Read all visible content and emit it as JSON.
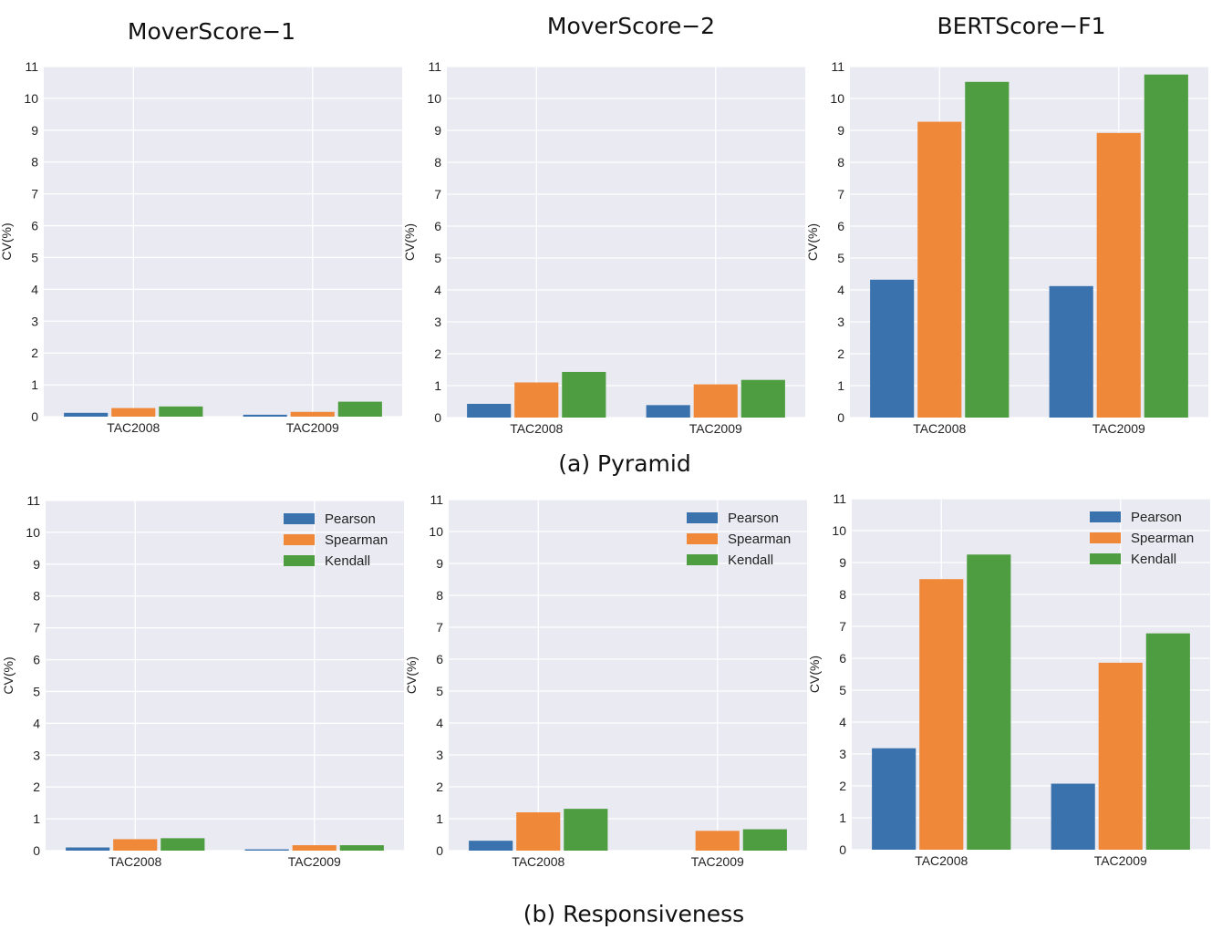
{
  "titles": {
    "col1": "MoverScore−1",
    "col2": "MoverScore−2",
    "col3": "BERTScore−F1"
  },
  "captions": {
    "top": "(a) Pyramid",
    "bottom": "(b) Responsiveness"
  },
  "colors": {
    "Pearson": "#3a72ad",
    "Spearman": "#ef8839",
    "Kendall": "#4e9d40",
    "plot_bg": "#eaeaf2",
    "grid": "#ffffff"
  },
  "chart_data": [
    {
      "type": "bar",
      "id": "pyr-ms1",
      "title": "MoverScore−1",
      "caption": "(a) Pyramid",
      "categories": [
        "TAC2008",
        "TAC2009"
      ],
      "ylabel": "CV(%)",
      "ylim": [
        0,
        11
      ],
      "yticks": [
        "0",
        "1",
        "2",
        "3",
        "4",
        "5",
        "6",
        "7",
        "8",
        "9",
        "10",
        "11"
      ],
      "legend": false,
      "series": [
        {
          "name": "Pearson",
          "values": [
            0.12,
            0.06
          ]
        },
        {
          "name": "Spearman",
          "values": [
            0.27,
            0.15
          ]
        },
        {
          "name": "Kendall",
          "values": [
            0.32,
            0.47
          ]
        }
      ]
    },
    {
      "type": "bar",
      "id": "pyr-ms2",
      "title": "MoverScore−2",
      "caption": "(a) Pyramid",
      "categories": [
        "TAC2008",
        "TAC2009"
      ],
      "ylabel": "CV(%)",
      "ylim": [
        0,
        11
      ],
      "yticks": [
        "0",
        "1",
        "2",
        "3",
        "4",
        "5",
        "6",
        "7",
        "8",
        "9",
        "10",
        "11"
      ],
      "legend": false,
      "series": [
        {
          "name": "Pearson",
          "values": [
            0.43,
            0.39
          ]
        },
        {
          "name": "Spearman",
          "values": [
            1.1,
            1.04
          ]
        },
        {
          "name": "Kendall",
          "values": [
            1.43,
            1.18
          ]
        }
      ]
    },
    {
      "type": "bar",
      "id": "pyr-bert",
      "title": "BERTScore−F1",
      "caption": "(a) Pyramid",
      "categories": [
        "TAC2008",
        "TAC2009"
      ],
      "ylabel": "CV(%)",
      "ylim": [
        0,
        11
      ],
      "yticks": [
        "0",
        "1",
        "2",
        "3",
        "4",
        "5",
        "6",
        "7",
        "8",
        "9",
        "10",
        "11"
      ],
      "legend": false,
      "series": [
        {
          "name": "Pearson",
          "values": [
            4.32,
            4.12
          ]
        },
        {
          "name": "Spearman",
          "values": [
            9.27,
            8.92
          ]
        },
        {
          "name": "Kendall",
          "values": [
            10.52,
            10.75
          ]
        }
      ]
    },
    {
      "type": "bar",
      "id": "resp-ms1",
      "title": "MoverScore−1",
      "caption": "(b) Responsiveness",
      "categories": [
        "TAC2008",
        "TAC2009"
      ],
      "ylabel": "CV(%)",
      "ylim": [
        0,
        11
      ],
      "yticks": [
        "0",
        "1",
        "2",
        "3",
        "4",
        "5",
        "6",
        "7",
        "8",
        "9",
        "10",
        "11"
      ],
      "legend": true,
      "legend_position": "top-right",
      "series": [
        {
          "name": "Pearson",
          "values": [
            0.1,
            0.04
          ]
        },
        {
          "name": "Spearman",
          "values": [
            0.36,
            0.17
          ]
        },
        {
          "name": "Kendall",
          "values": [
            0.39,
            0.17
          ]
        }
      ]
    },
    {
      "type": "bar",
      "id": "resp-ms2",
      "title": "MoverScore−2",
      "caption": "(b) Responsiveness",
      "categories": [
        "TAC2008",
        "TAC2009"
      ],
      "ylabel": "CV(%)",
      "ylim": [
        0,
        11
      ],
      "yticks": [
        "0",
        "1",
        "2",
        "3",
        "4",
        "5",
        "6",
        "7",
        "8",
        "9",
        "10",
        "11"
      ],
      "legend": true,
      "legend_position": "top-right",
      "series": [
        {
          "name": "Pearson",
          "values": [
            0.31,
            0.0
          ]
        },
        {
          "name": "Spearman",
          "values": [
            1.2,
            0.62
          ]
        },
        {
          "name": "Kendall",
          "values": [
            1.31,
            0.67
          ]
        }
      ]
    },
    {
      "type": "bar",
      "id": "resp-bert",
      "title": "BERTScore−F1",
      "caption": "(b) Responsiveness",
      "categories": [
        "TAC2008",
        "TAC2009"
      ],
      "ylabel": "CV(%)",
      "ylim": [
        0,
        11
      ],
      "yticks": [
        "0",
        "1",
        "2",
        "3",
        "4",
        "5",
        "6",
        "7",
        "8",
        "9",
        "10",
        "11"
      ],
      "legend": true,
      "legend_position": "top-right",
      "series": [
        {
          "name": "Pearson",
          "values": [
            3.18,
            2.07
          ]
        },
        {
          "name": "Spearman",
          "values": [
            8.48,
            5.86
          ]
        },
        {
          "name": "Kendall",
          "values": [
            9.25,
            6.78
          ]
        }
      ]
    }
  ]
}
